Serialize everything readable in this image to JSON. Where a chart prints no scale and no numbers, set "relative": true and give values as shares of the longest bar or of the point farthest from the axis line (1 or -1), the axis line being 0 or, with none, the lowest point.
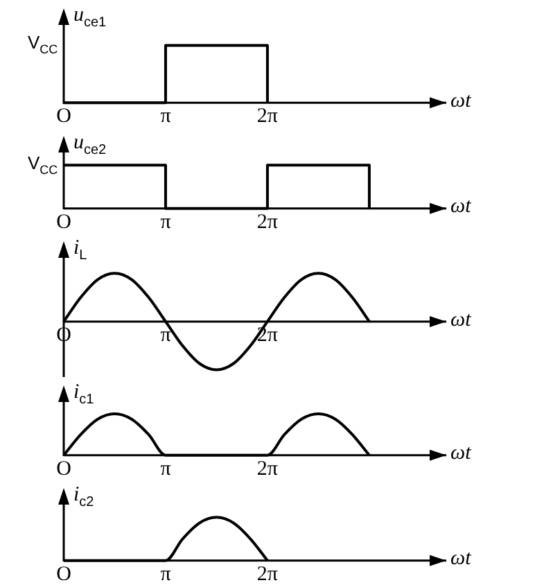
{
  "chart_data": [
    {
      "type": "step",
      "ylabel": "u$_{ce1}$",
      "xlabel": "ωt",
      "relative": true,
      "color": "#000000",
      "tick_labels": "x",
      "annotations": [
        "V$_{CC}$"
      ],
      "x": [
        0,
        3.14159,
        6.28319
      ],
      "values": [
        0,
        1,
        0
      ],
      "xlim": [
        0,
        11.8
      ],
      "xticks": [
        {
          "value": 0,
          "label": "O"
        },
        {
          "value": 3.14159,
          "label": "π"
        },
        {
          "value": 6.28319,
          "label": "2π"
        }
      ]
    },
    {
      "type": "step",
      "ylabel": "u$_{ce2}$",
      "xlabel": "ωt",
      "relative": true,
      "color": "#000000",
      "tick_labels": "x",
      "annotations": [
        "V$_{CC}$"
      ],
      "x": [
        0,
        3.14159,
        6.28319,
        9.42478
      ],
      "values": [
        1,
        0,
        1,
        0
      ],
      "xlim": [
        0,
        11.8
      ],
      "xticks": [
        {
          "value": 0,
          "label": "O"
        },
        {
          "value": 3.14159,
          "label": "π"
        },
        {
          "value": 6.28319,
          "label": "2π"
        }
      ]
    },
    {
      "type": "line",
      "ylabel": "i$_{L}$",
      "xlabel": "ωt",
      "relative": true,
      "color": "#000000",
      "tick_labels": "x",
      "x": [
        0,
        0.5236,
        1.0472,
        1.5708,
        2.0944,
        2.618,
        3.14159,
        3.6652,
        4.1888,
        4.7124,
        5.236,
        5.7596,
        6.28319,
        6.8068,
        7.3304,
        7.854,
        8.3776,
        8.9012,
        9.42478
      ],
      "values": [
        0,
        0.5,
        0.87,
        1,
        0.87,
        0.5,
        0,
        -0.5,
        -0.87,
        -1,
        -0.87,
        -0.5,
        0,
        0.5,
        0.87,
        1,
        0.87,
        0.5,
        0
      ],
      "xlim": [
        0,
        11.8
      ],
      "xticks": [
        {
          "value": 0,
          "label": "O"
        },
        {
          "value": 3.14159,
          "label": "π"
        },
        {
          "value": 6.28319,
          "label": "2π"
        }
      ]
    },
    {
      "type": "line",
      "ylabel": "i$_{c1}$",
      "xlabel": "ωt",
      "relative": true,
      "color": "#000000",
      "tick_labels": "x",
      "x": [
        0,
        0.5236,
        1.0472,
        1.5708,
        2.0944,
        2.618,
        3.14159,
        6.28319,
        6.8068,
        7.3304,
        7.854,
        8.3776,
        8.9012,
        9.42478
      ],
      "values": [
        0,
        0.5,
        0.87,
        1,
        0.87,
        0.5,
        0,
        0,
        0.5,
        0.87,
        1,
        0.87,
        0.5,
        0
      ],
      "xlim": [
        0,
        11.8
      ],
      "xticks": [
        {
          "value": 0,
          "label": "O"
        },
        {
          "value": 3.14159,
          "label": "π"
        },
        {
          "value": 6.28319,
          "label": "2π"
        }
      ]
    },
    {
      "type": "line",
      "ylabel": "i$_{c2}$",
      "xlabel": "ωt",
      "relative": true,
      "color": "#000000",
      "tick_labels": "x",
      "x": [
        0,
        3.14159,
        3.6652,
        4.1888,
        4.7124,
        5.236,
        5.7596,
        6.28319
      ],
      "values": [
        0,
        0,
        0.5,
        0.87,
        1,
        0.87,
        0.5,
        0
      ],
      "xlim": [
        0,
        11.8
      ],
      "xticks": [
        {
          "value": 0,
          "label": "O"
        },
        {
          "value": 3.14159,
          "label": "π"
        },
        {
          "value": 6.28319,
          "label": "2π"
        }
      ]
    }
  ]
}
